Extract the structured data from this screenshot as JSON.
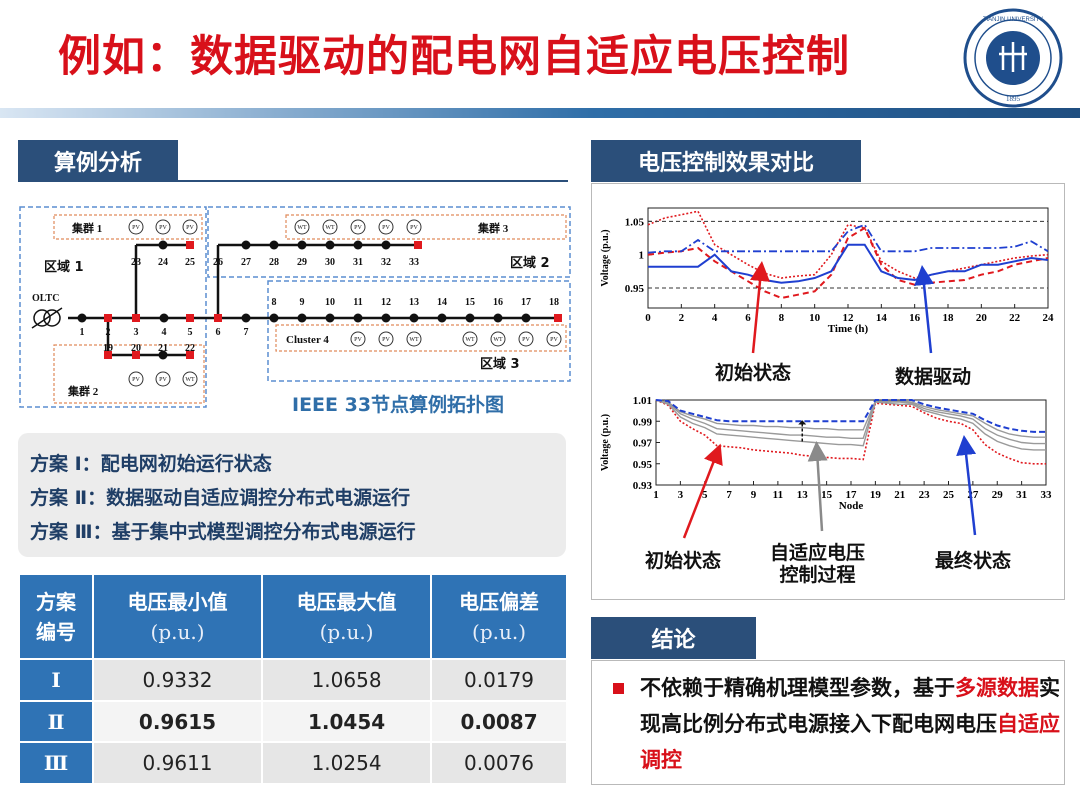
{
  "slide": {
    "title": "例如：数据驱动的配电网自适应电压控制",
    "logo_text": "TIANJIN UNIVERSITY (PEIYANG UNIVERSITY) 1895 天津大学"
  },
  "left": {
    "section_title": "算例分析",
    "topology": {
      "caption": "IEEE 33节点算例拓扑图",
      "clusters": [
        "集群 1",
        "集群 2",
        "集群 3",
        "Cluster 4"
      ],
      "regions": [
        "区域 1",
        "区域 2",
        "区域 3"
      ],
      "oltc_label": "OLTC",
      "device_pv": "PV",
      "device_wt": "WT",
      "bus_labels": {
        "main": [
          "1",
          "2",
          "3",
          "4",
          "5",
          "6",
          "7"
        ],
        "branch_a": [
          "23",
          "24",
          "25"
        ],
        "branch_b": [
          "26",
          "27",
          "28",
          "29",
          "30",
          "31",
          "32",
          "33"
        ],
        "branch_c": [
          "8",
          "9",
          "10",
          "11",
          "12",
          "13",
          "14",
          "15",
          "16",
          "17",
          "18"
        ],
        "branch_d": [
          "19",
          "20",
          "21",
          "22"
        ]
      }
    },
    "schemes": [
      {
        "tag": "方案 Ⅰ：",
        "text": "配电网初始运行状态"
      },
      {
        "tag": "方案 Ⅱ：",
        "text": "数据驱动自适应调控分布式电源运行"
      },
      {
        "tag": "方案 Ⅲ：",
        "text": "基于集中式模型调控分布式电源运行"
      }
    ],
    "table": {
      "headers": [
        {
          "line1": "方案",
          "line2": "编号"
        },
        {
          "line1": "电压最小值",
          "line2": "(p.u.)"
        },
        {
          "line1": "电压最大值",
          "line2": "(p.u.)"
        },
        {
          "line1": "电压偏差",
          "line2": "(p.u.)"
        }
      ],
      "rows": [
        {
          "scheme": "Ⅰ",
          "min": "0.9332",
          "max": "1.0658",
          "dev": "0.0179"
        },
        {
          "scheme": "Ⅱ",
          "min": "0.9615",
          "max": "1.0454",
          "dev": "0.0087"
        },
        {
          "scheme": "Ⅲ",
          "min": "0.9611",
          "max": "1.0254",
          "dev": "0.0076"
        }
      ]
    }
  },
  "right": {
    "section_title": "电压控制效果对比",
    "chart_labels": {
      "top_initial": "初始状态",
      "top_data": "数据驱动",
      "bottom_initial": "初始状态",
      "bottom_process_1": "自适应电压",
      "bottom_process_2": "控制过程",
      "bottom_final": "最终状态"
    },
    "conclusion_title": "结论",
    "conclusion": {
      "part1": "不依赖于精确机理模型参数，基于",
      "highlight1": "多源数据",
      "part2": "实现高比例分布式电源接入下配电网电压",
      "highlight2": "自适应调控"
    }
  },
  "colors": {
    "title_red": "#d8101a",
    "section_blue": "#2b4f7a",
    "table_blue": "#2f73b5",
    "series_red": "#e0191e",
    "series_blue": "#1f3fd0",
    "series_gray": "#9a9a9a"
  },
  "chart_data": [
    {
      "type": "line",
      "xlabel": "Time (h)",
      "ylabel": "Voltage (p.u.)",
      "xlim": [
        0,
        24
      ],
      "ylim": [
        0.92,
        1.07
      ],
      "x_ticks": [
        "0",
        "2",
        "4",
        "6",
        "8",
        "10",
        "12",
        "14",
        "16",
        "18",
        "20",
        "22",
        "24"
      ],
      "y_ticks": [
        "0.95",
        "1",
        "1.05"
      ],
      "x": [
        0,
        1,
        2,
        3,
        4,
        5,
        6,
        7,
        8,
        9,
        10,
        11,
        12,
        13,
        14,
        15,
        16,
        17,
        18,
        19,
        20,
        21,
        22,
        23,
        24
      ],
      "series": [
        {
          "style": "red-dotted",
          "values": [
            1.045,
            1.055,
            1.06,
            1.065,
            1.015,
            1.0,
            0.985,
            0.972,
            0.965,
            0.968,
            0.97,
            1.0,
            1.045,
            1.04,
            0.99,
            0.975,
            0.965,
            0.97,
            0.975,
            0.98,
            0.985,
            0.99,
            0.995,
            0.998,
            1.0
          ]
        },
        {
          "style": "red-dashed",
          "values": [
            1.0,
            1.003,
            1.005,
            1.01,
            0.99,
            0.975,
            0.96,
            0.945,
            0.935,
            0.94,
            0.945,
            0.97,
            1.025,
            1.04,
            0.985,
            0.962,
            0.955,
            0.958,
            0.96,
            0.962,
            0.97,
            0.975,
            0.985,
            0.99,
            0.995
          ]
        },
        {
          "style": "blue-dashdot",
          "values": [
            1.003,
            1.005,
            1.005,
            1.022,
            1.005,
            1.005,
            1.005,
            1.005,
            1.005,
            1.005,
            1.005,
            1.005,
            1.035,
            1.045,
            1.005,
            1.005,
            1.005,
            1.01,
            1.01,
            1.01,
            1.01,
            1.01,
            1.012,
            1.02,
            1.005
          ]
        },
        {
          "style": "blue-solid",
          "values": [
            0.982,
            0.982,
            0.982,
            0.982,
            1.0,
            0.975,
            0.97,
            0.962,
            0.958,
            0.96,
            0.965,
            0.975,
            1.015,
            1.015,
            0.975,
            0.965,
            0.962,
            0.97,
            0.975,
            0.975,
            0.985,
            0.985,
            0.99,
            0.995,
            0.992
          ]
        }
      ]
    },
    {
      "type": "line",
      "xlabel": "Node",
      "ylabel": "Voltage (p.u.)",
      "xlim": [
        1,
        33
      ],
      "ylim": [
        0.93,
        1.01
      ],
      "x_ticks": [
        "1",
        "3",
        "5",
        "7",
        "9",
        "11",
        "13",
        "15",
        "17",
        "19",
        "21",
        "23",
        "25",
        "27",
        "29",
        "31",
        "33"
      ],
      "y_ticks": [
        "0.93",
        "0.95",
        "0.97",
        "0.99",
        "1.01"
      ],
      "x": [
        1,
        2,
        3,
        4,
        5,
        6,
        7,
        8,
        9,
        10,
        11,
        12,
        13,
        14,
        15,
        16,
        17,
        18,
        19,
        20,
        21,
        22,
        23,
        24,
        25,
        26,
        27,
        28,
        29,
        30,
        31,
        32,
        33
      ],
      "series": [
        {
          "style": "red-dotted",
          "values": [
            1.01,
            1.005,
            0.99,
            0.983,
            0.977,
            0.967,
            0.966,
            0.965,
            0.963,
            0.962,
            0.961,
            0.96,
            0.958,
            0.957,
            0.956,
            0.955,
            0.955,
            0.954,
            1.007,
            1.006,
            1.005,
            1.004,
            0.998,
            0.993,
            0.99,
            0.988,
            0.982,
            0.968,
            0.96,
            0.955,
            0.951,
            0.95,
            0.95
          ]
        },
        {
          "style": "gray",
          "values": [
            1.01,
            1.006,
            0.994,
            0.988,
            0.984,
            0.978,
            0.977,
            0.976,
            0.975,
            0.974,
            0.973,
            0.972,
            0.971,
            0.97,
            0.969,
            0.968,
            0.968,
            0.967,
            1.008,
            1.007,
            1.006,
            1.006,
            1.0,
            0.997,
            0.994,
            0.992,
            0.988,
            0.978,
            0.971,
            0.967,
            0.964,
            0.963,
            0.963
          ]
        },
        {
          "style": "gray",
          "values": [
            1.01,
            1.007,
            0.997,
            0.992,
            0.988,
            0.983,
            0.982,
            0.981,
            0.98,
            0.979,
            0.978,
            0.977,
            0.977,
            0.976,
            0.975,
            0.975,
            0.974,
            0.974,
            1.009,
            1.008,
            1.008,
            1.007,
            1.002,
            0.999,
            0.997,
            0.995,
            0.992,
            0.983,
            0.977,
            0.973,
            0.97,
            0.969,
            0.969
          ]
        },
        {
          "style": "gray",
          "values": [
            1.01,
            1.008,
            0.999,
            0.995,
            0.992,
            0.988,
            0.987,
            0.986,
            0.986,
            0.985,
            0.985,
            0.984,
            0.984,
            0.983,
            0.983,
            0.982,
            0.982,
            0.982,
            1.009,
            1.009,
            1.009,
            1.008,
            1.004,
            1.001,
            0.999,
            0.997,
            0.995,
            0.988,
            0.982,
            0.978,
            0.976,
            0.975,
            0.975
          ]
        },
        {
          "style": "blue-dashed",
          "values": [
            1.01,
            1.009,
            1.0,
            0.997,
            0.994,
            0.991,
            0.99,
            0.99,
            0.99,
            0.99,
            0.99,
            0.99,
            0.99,
            0.99,
            0.99,
            0.99,
            0.99,
            0.99,
            1.01,
            1.01,
            1.01,
            1.01,
            1.006,
            1.003,
            1.001,
            0.999,
            0.997,
            0.991,
            0.986,
            0.983,
            0.981,
            0.98,
            0.98
          ]
        }
      ]
    }
  ]
}
